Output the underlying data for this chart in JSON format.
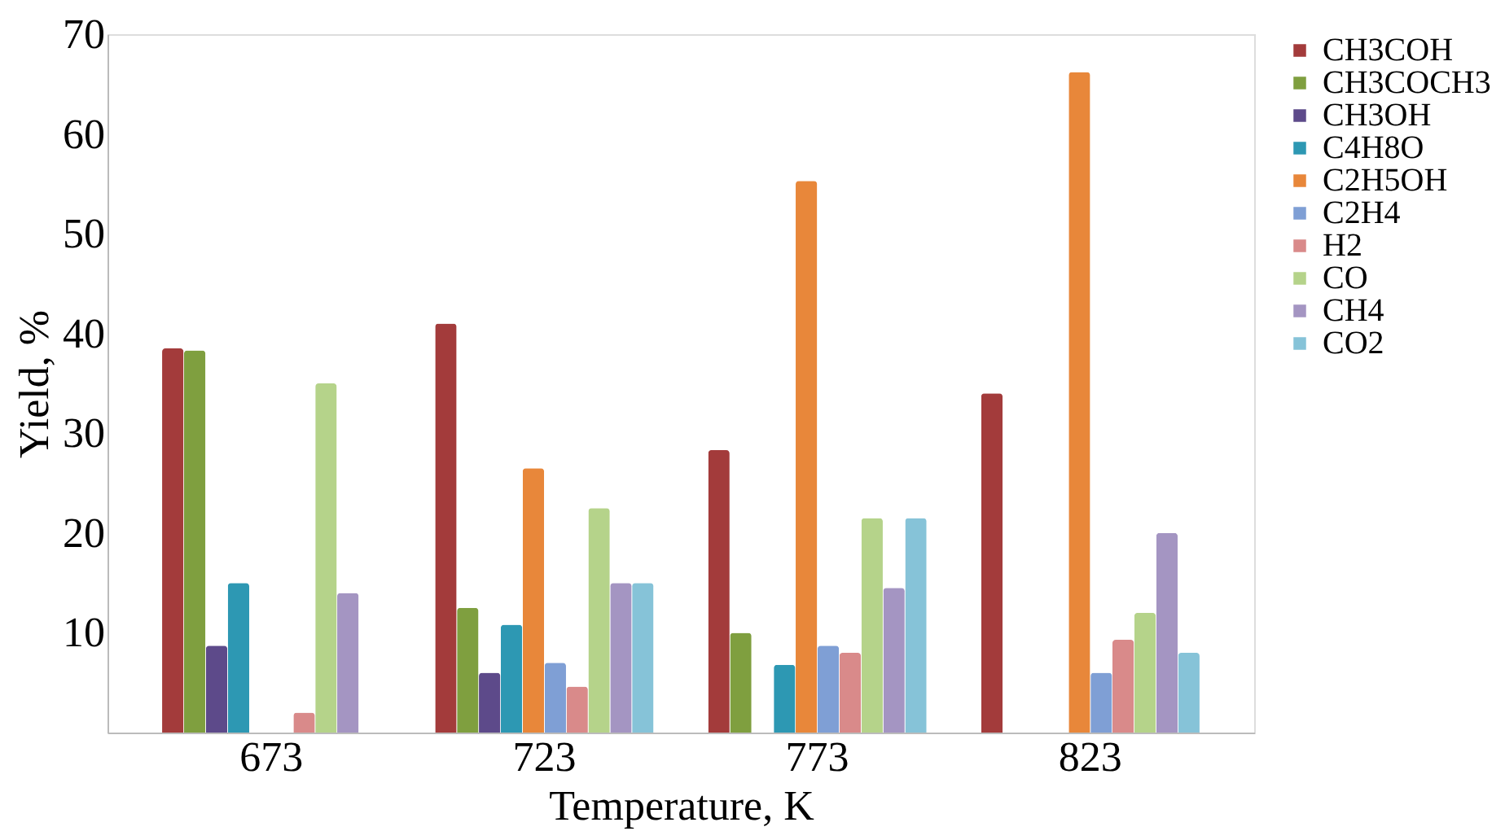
{
  "chart_data": {
    "type": "bar",
    "xlabel": "Temperature, K",
    "ylabel": "Yield, %",
    "categories": [
      "673",
      "723",
      "773",
      "823"
    ],
    "ylim": [
      0,
      70
    ],
    "yticks": [
      10,
      20,
      30,
      40,
      50,
      60,
      70
    ],
    "grid": false,
    "legend": "top right",
    "series": [
      {
        "name": "CH3COH",
        "color": "#a33b3b",
        "values": [
          38.5,
          41,
          28.3,
          34
        ]
      },
      {
        "name": "CH3COCH3",
        "color": "#7f9f3f",
        "values": [
          38.3,
          12.5,
          10,
          0
        ]
      },
      {
        "name": "CH3OH",
        "color": "#5d4a8a",
        "values": [
          8.7,
          6,
          0,
          0
        ]
      },
      {
        "name": "C4H8O",
        "color": "#2d98b3",
        "values": [
          15,
          10.8,
          6.8,
          0
        ]
      },
      {
        "name": "C2H5OH",
        "color": "#e8873a",
        "values": [
          0,
          26.5,
          55.3,
          66.2
        ]
      },
      {
        "name": "C2H4",
        "color": "#7f9fd5",
        "values": [
          0,
          7,
          8.7,
          6
        ]
      },
      {
        "name": "H2",
        "color": "#d98a8a",
        "values": [
          2,
          4.6,
          8,
          9.3
        ]
      },
      {
        "name": "CO",
        "color": "#b5d38a",
        "values": [
          35,
          22.5,
          21.5,
          12
        ]
      },
      {
        "name": "CH4",
        "color": "#a495c2",
        "values": [
          14,
          15,
          14.5,
          20
        ]
      },
      {
        "name": "CO2",
        "color": "#86c3d8",
        "values": [
          0,
          15,
          21.5,
          8
        ]
      }
    ]
  }
}
